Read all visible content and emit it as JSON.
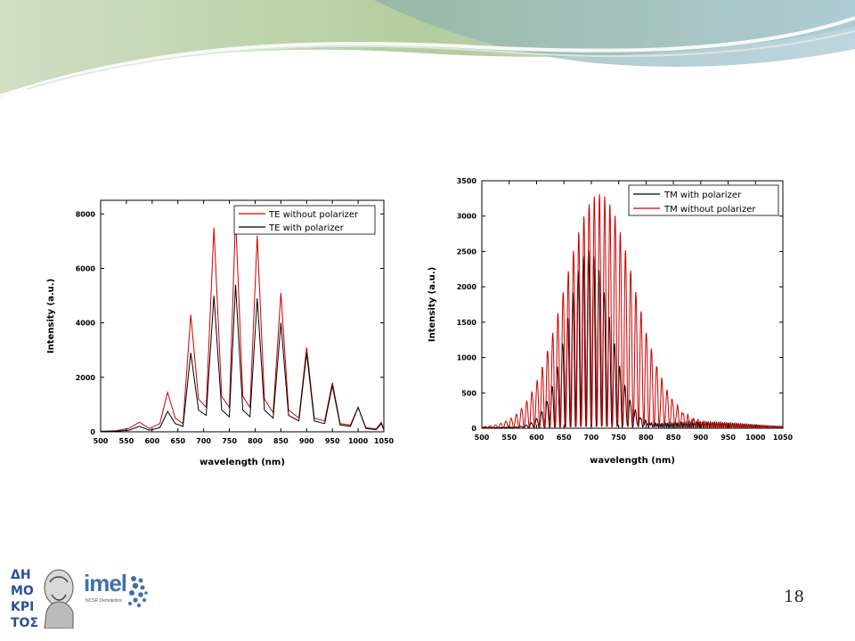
{
  "slide": {
    "page_number": "18",
    "colors": {
      "banner_green": "#a9c08f",
      "banner_teal": "#8fb8b8",
      "banner_light": "#d7e6d0"
    }
  },
  "logos": {
    "demokritos": {
      "icon": "demokritos-portrait-logo"
    },
    "imel": {
      "text": "imel",
      "subtitle": "NCSR Demokritos",
      "icon": "imel-dots-logo"
    }
  },
  "chart_data": [
    {
      "type": "line",
      "xlabel": "wavelength (nm)",
      "ylabel": "Intensity (a.u.)",
      "xlim": [
        500,
        1050
      ],
      "ylim": [
        0,
        8500
      ],
      "x_ticks": [
        "500",
        "550",
        "600",
        "650",
        "700",
        "750",
        "800",
        "850",
        "900",
        "950",
        "1000",
        "1050"
      ],
      "y_ticks": [
        "0",
        "2000",
        "4000",
        "6000",
        "8000"
      ],
      "legend_position": "top-right",
      "grid": false,
      "series": [
        {
          "name": "TE  without polarizer",
          "color": "#cc0000",
          "points": [
            [
              500,
              20
            ],
            [
              530,
              40
            ],
            [
              555,
              120
            ],
            [
              575,
              350
            ],
            [
              595,
              120
            ],
            [
              615,
              300
            ],
            [
              630,
              1450
            ],
            [
              645,
              500
            ],
            [
              660,
              300
            ],
            [
              675,
              4300
            ],
            [
              690,
              1200
            ],
            [
              705,
              900
            ],
            [
              720,
              7500
            ],
            [
              735,
              1300
            ],
            [
              750,
              900
            ],
            [
              762,
              7900
            ],
            [
              776,
              1300
            ],
            [
              790,
              900
            ],
            [
              804,
              7200
            ],
            [
              818,
              1200
            ],
            [
              835,
              700
            ],
            [
              850,
              5100
            ],
            [
              865,
              800
            ],
            [
              885,
              500
            ],
            [
              900,
              3100
            ],
            [
              915,
              500
            ],
            [
              935,
              400
            ],
            [
              950,
              1800
            ],
            [
              965,
              300
            ],
            [
              985,
              250
            ],
            [
              1000,
              900
            ],
            [
              1015,
              150
            ],
            [
              1035,
              100
            ],
            [
              1045,
              350
            ],
            [
              1050,
              100
            ]
          ]
        },
        {
          "name": "TE  with polarizer",
          "color": "#000000",
          "points": [
            [
              500,
              10
            ],
            [
              530,
              20
            ],
            [
              555,
              60
            ],
            [
              575,
              200
            ],
            [
              595,
              60
            ],
            [
              615,
              150
            ],
            [
              630,
              750
            ],
            [
              645,
              300
            ],
            [
              660,
              200
            ],
            [
              675,
              2900
            ],
            [
              690,
              800
            ],
            [
              705,
              600
            ],
            [
              720,
              5000
            ],
            [
              735,
              800
            ],
            [
              750,
              550
            ],
            [
              762,
              5400
            ],
            [
              776,
              800
            ],
            [
              790,
              550
            ],
            [
              804,
              4900
            ],
            [
              818,
              800
            ],
            [
              835,
              500
            ],
            [
              850,
              4000
            ],
            [
              865,
              600
            ],
            [
              885,
              400
            ],
            [
              900,
              2900
            ],
            [
              915,
              400
            ],
            [
              935,
              300
            ],
            [
              950,
              1700
            ],
            [
              965,
              250
            ],
            [
              985,
              200
            ],
            [
              1000,
              900
            ],
            [
              1015,
              120
            ],
            [
              1035,
              80
            ],
            [
              1045,
              300
            ],
            [
              1050,
              80
            ]
          ]
        }
      ]
    },
    {
      "type": "line",
      "xlabel": "wavelength (nm)",
      "ylabel": "Intensity (a.u.)",
      "xlim": [
        500,
        1050
      ],
      "ylim": [
        0,
        3500
      ],
      "x_ticks": [
        "500",
        "550",
        "600",
        "650",
        "700",
        "750",
        "800",
        "850",
        "900",
        "950",
        "1000",
        "1050"
      ],
      "y_ticks": [
        "0",
        "500",
        "1000",
        "1500",
        "2000",
        "2500",
        "3000",
        "3500"
      ],
      "legend_position": "top-right",
      "grid": false,
      "series": [
        {
          "name": "TM  with polarizer",
          "color": "#000000",
          "center": 695,
          "width": 55,
          "peak": 2500,
          "period": 9.5,
          "tail": 80
        },
        {
          "name": "TM  without polarizer",
          "color": "#cc0000",
          "center": 715,
          "width": 90,
          "peak": 3300,
          "period": 9.5,
          "tail": 60
        }
      ]
    }
  ]
}
